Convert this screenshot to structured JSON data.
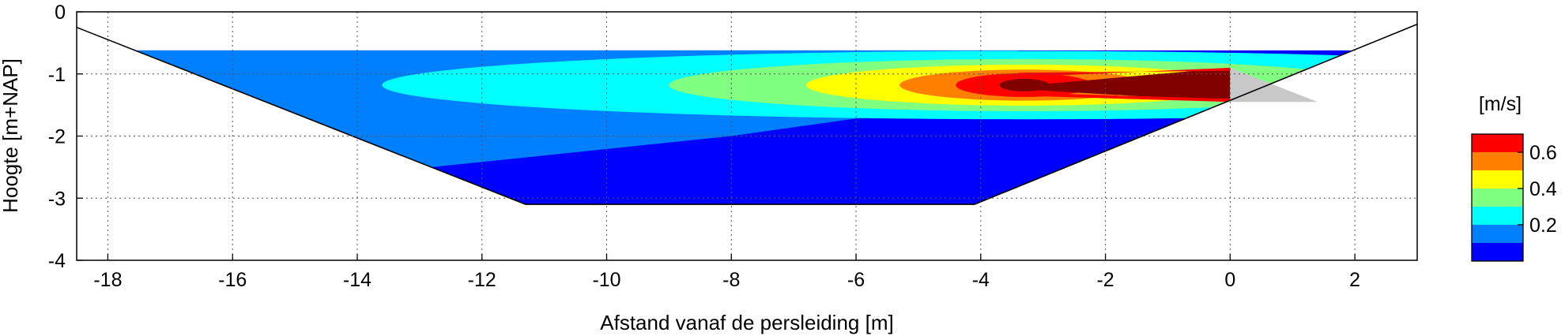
{
  "chart_data": {
    "type": "heatmap",
    "title": "",
    "xlabel": "Afstand vanaf de persleiding [m]",
    "ylabel": "Hoogte [m+NAP]",
    "xlim": [
      -18.5,
      3
    ],
    "ylim": [
      -4,
      0
    ],
    "xticks": [
      -18,
      -16,
      -14,
      -12,
      -10,
      -8,
      -6,
      -4,
      -2,
      0,
      2
    ],
    "yticks": [
      0,
      -1,
      -2,
      -3,
      -4
    ],
    "x_tick_labels": [
      "-18",
      "-16",
      "-14",
      "-12",
      "-10",
      "-8",
      "-6",
      "-4",
      "-2",
      "0",
      "2"
    ],
    "y_tick_labels": [
      "0",
      "-1",
      "-2",
      "-3",
      "-4"
    ],
    "grid": true,
    "channel_profile": {
      "bank_left_x": [
        -18.5,
        -11.3
      ],
      "bank_left_y": [
        -0.25,
        -3.1
      ],
      "bed_x": [
        -11.3,
        -4.1
      ],
      "bed_y": -3.1,
      "bank_right_x": [
        -4.1,
        3.0
      ],
      "bank_right_y": [
        -3.1,
        -0.2
      ],
      "water_level": -0.62
    },
    "jet_source": {
      "x_range": [
        0,
        1.4
      ],
      "y_range": [
        -1.45,
        -0.9
      ],
      "color": "#c8c8c8"
    },
    "colorbar": {
      "label": "[m/s]",
      "levels": [
        0,
        0.1,
        0.2,
        0.3,
        0.4,
        0.5,
        0.6,
        0.7
      ],
      "tick_labels": [
        "0.2",
        "0.4",
        "0.6"
      ],
      "tick_values": [
        0.2,
        0.4,
        0.6
      ],
      "colors": [
        "#0000ff",
        "#0080ff",
        "#00ffff",
        "#80ff80",
        "#ffff00",
        "#ff8000",
        "#ff0000",
        "#800000"
      ]
    }
  }
}
